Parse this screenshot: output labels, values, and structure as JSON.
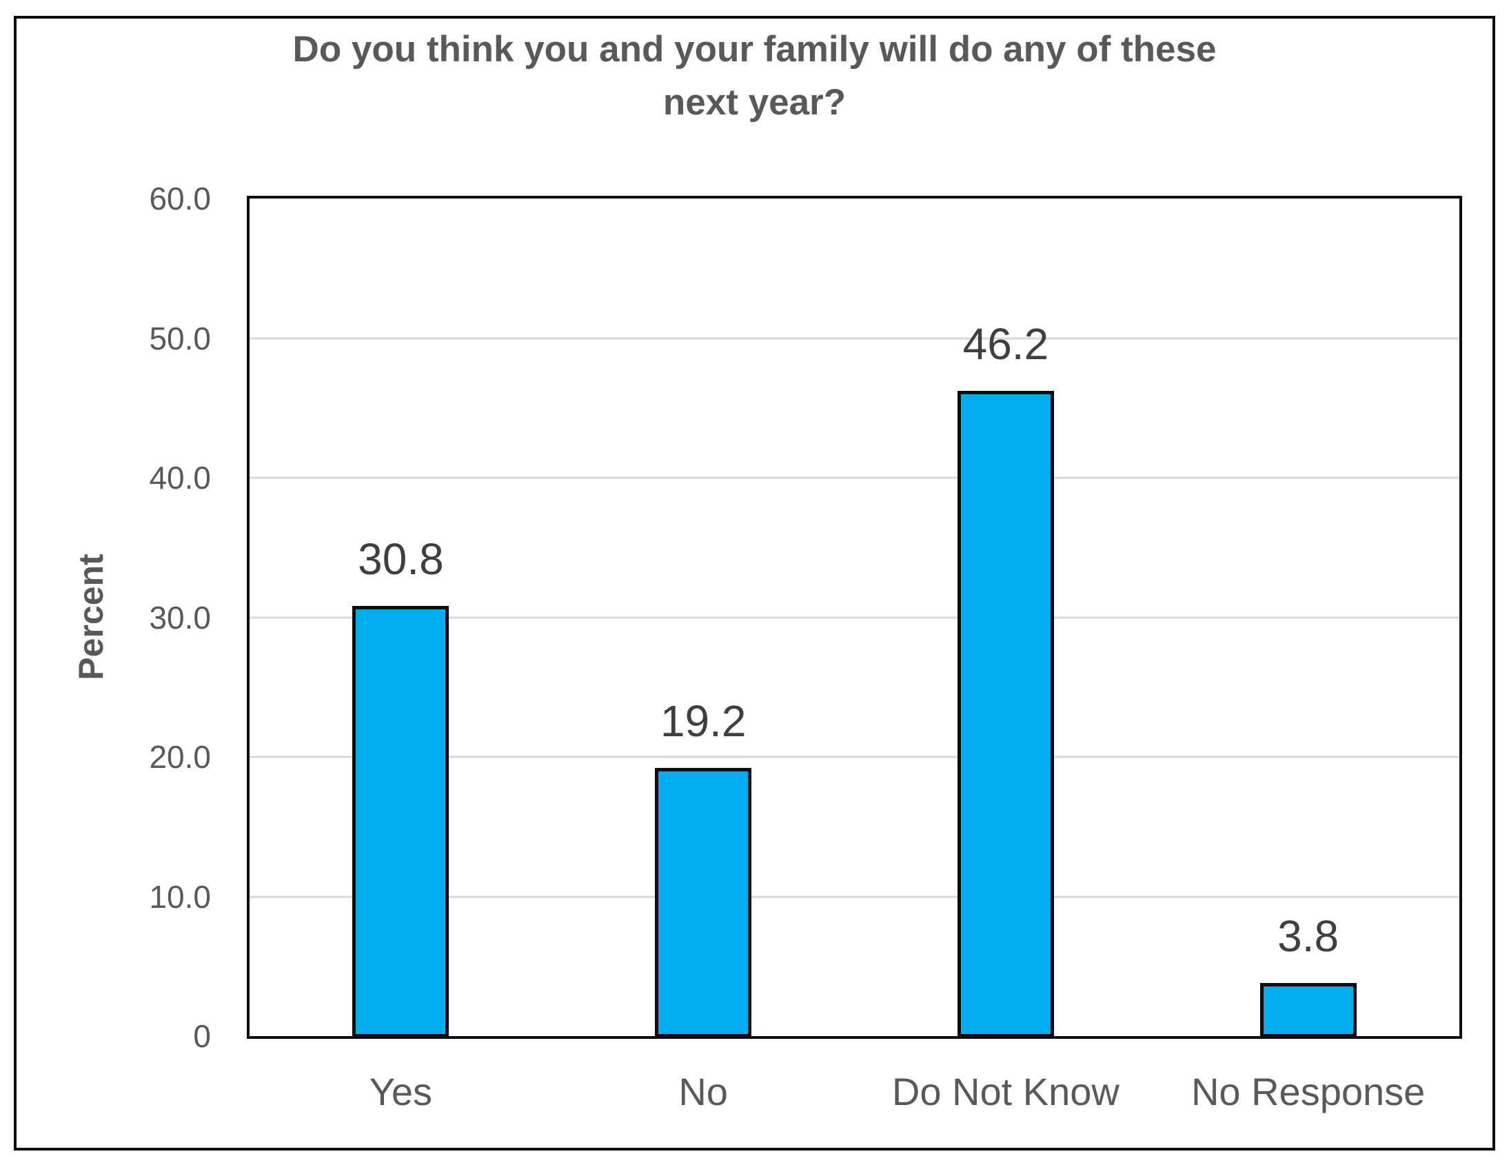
{
  "chart_data": {
    "type": "bar",
    "title": "Do you think you and your family will do any of these\nnext year?",
    "categories": [
      "Yes",
      "No",
      "Do Not Know",
      "No Response"
    ],
    "values": [
      30.8,
      19.2,
      46.2,
      3.8
    ],
    "value_labels": [
      "30.8",
      "19.2",
      "46.2",
      "3.8"
    ],
    "ylabel": "Percent",
    "xlabel": "",
    "ylim": [
      0,
      60
    ],
    "yticks": [
      60,
      50,
      40,
      30,
      20,
      10,
      0
    ],
    "ytick_labels": [
      "60.0",
      "50.0",
      "40.0",
      "30.0",
      "20.0",
      "10.0",
      "0"
    ],
    "grid": "horizontal",
    "legend": "none",
    "colors": {
      "bar_fill": "#00AEEF",
      "bar_border": "#0d0d0d",
      "gridline": "#D9D9D9",
      "axis_text": "#595959",
      "title_text": "#595959",
      "value_label_text": "#3F3F3F",
      "plot_border": "#0d0d0d"
    }
  }
}
